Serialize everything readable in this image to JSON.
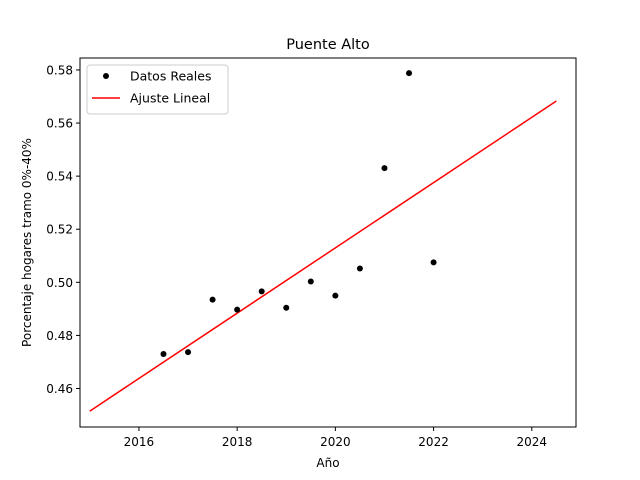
{
  "chart_data": {
    "type": "scatter",
    "title": "Puente Alto",
    "xlabel": "Año",
    "ylabel": "Porcentaje hogares tramo 0%-40%",
    "xlim": [
      2014.8,
      2024.9
    ],
    "ylim": [
      0.4455,
      0.5845
    ],
    "xticks": [
      2016,
      2018,
      2020,
      2022,
      2024
    ],
    "xtick_labels": [
      "2016",
      "2018",
      "2020",
      "2022",
      "2024"
    ],
    "yticks": [
      0.46,
      0.48,
      0.5,
      0.52,
      0.54,
      0.56,
      0.58
    ],
    "ytick_labels": [
      "0.46",
      "0.48",
      "0.50",
      "0.52",
      "0.54",
      "0.56",
      "0.58"
    ],
    "grid": false,
    "legend_position": "top-left",
    "series": [
      {
        "name": "Datos Reales",
        "kind": "scatter",
        "color": "#000000",
        "x": [
          2016.5,
          2017.0,
          2017.5,
          2018.0,
          2018.5,
          2019.0,
          2019.5,
          2020.0,
          2020.5,
          2021.0,
          2021.5,
          2022.0
        ],
        "y": [
          0.473,
          0.4737,
          0.4935,
          0.4897,
          0.4966,
          0.4904,
          0.5003,
          0.495,
          0.5052,
          0.543,
          0.5788,
          0.5075
        ]
      },
      {
        "name": "Ajuste Lineal",
        "kind": "line",
        "color": "#ff0000",
        "x": [
          2015.0,
          2024.5
        ],
        "y": [
          0.4515,
          0.5683
        ]
      }
    ]
  }
}
